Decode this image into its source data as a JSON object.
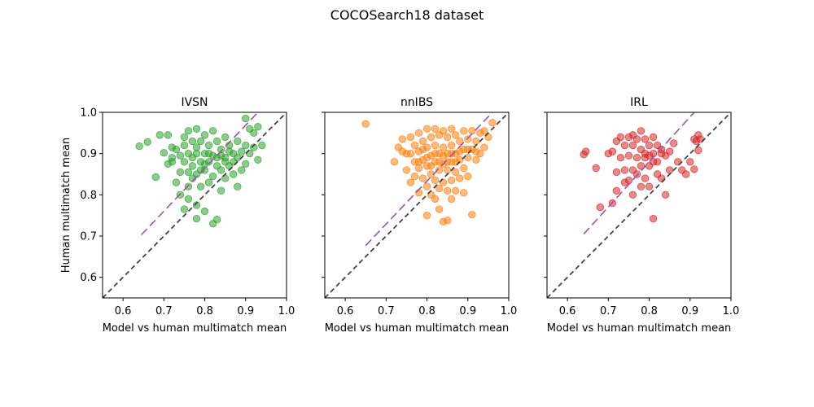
{
  "figure": {
    "suptitle": "COCOSearch18 dataset"
  },
  "chart_data": [
    {
      "type": "scatter",
      "title": "IVSN",
      "xlabel": "Model vs human multimatch mean",
      "ylabel": "Human multimatch mean",
      "xlim": [
        0.55,
        1.0
      ],
      "ylim": [
        0.55,
        1.0
      ],
      "xticks": [
        "0.6",
        "0.7",
        "0.8",
        "0.9",
        "1.0"
      ],
      "yticks": [
        "0.6",
        "0.7",
        "0.8",
        "0.9",
        "1.0"
      ],
      "color": "#2ca02c",
      "identity_line": {
        "color": "#444444",
        "points": [
          [
            0.55,
            0.55
          ],
          [
            1.0,
            1.0
          ]
        ]
      },
      "fit_line": {
        "color": "#a050b0",
        "points": [
          [
            0.645,
            0.703
          ],
          [
            0.93,
            1.0
          ]
        ]
      },
      "points": [
        [
          0.64,
          0.918
        ],
        [
          0.66,
          0.928
        ],
        [
          0.68,
          0.843
        ],
        [
          0.69,
          0.945
        ],
        [
          0.7,
          0.902
        ],
        [
          0.71,
          0.945
        ],
        [
          0.71,
          0.875
        ],
        [
          0.72,
          0.915
        ],
        [
          0.72,
          0.88
        ],
        [
          0.73,
          0.83
        ],
        [
          0.73,
          0.91
        ],
        [
          0.74,
          0.895
        ],
        [
          0.74,
          0.855
        ],
        [
          0.74,
          0.8
        ],
        [
          0.75,
          0.92
        ],
        [
          0.75,
          0.88
        ],
        [
          0.75,
          0.765
        ],
        [
          0.76,
          0.955
        ],
        [
          0.76,
          0.9
        ],
        [
          0.76,
          0.855
        ],
        [
          0.76,
          0.82
        ],
        [
          0.76,
          0.79
        ],
        [
          0.77,
          0.93
        ],
        [
          0.77,
          0.87
        ],
        [
          0.77,
          0.84
        ],
        [
          0.78,
          0.96
        ],
        [
          0.78,
          0.9
        ],
        [
          0.78,
          0.85
        ],
        [
          0.78,
          0.775
        ],
        [
          0.78,
          0.742
        ],
        [
          0.79,
          0.93
        ],
        [
          0.79,
          0.88
        ],
        [
          0.79,
          0.82
        ],
        [
          0.8,
          0.945
        ],
        [
          0.8,
          0.9
        ],
        [
          0.8,
          0.86
        ],
        [
          0.8,
          0.76
        ],
        [
          0.81,
          0.92
        ],
        [
          0.81,
          0.88
        ],
        [
          0.81,
          0.83
        ],
        [
          0.82,
          0.955
        ],
        [
          0.82,
          0.895
        ],
        [
          0.82,
          0.845
        ],
        [
          0.82,
          0.73
        ],
        [
          0.83,
          0.93
        ],
        [
          0.83,
          0.87
        ],
        [
          0.83,
          0.74
        ],
        [
          0.84,
          0.91
        ],
        [
          0.84,
          0.86
        ],
        [
          0.84,
          0.81
        ],
        [
          0.85,
          0.94
        ],
        [
          0.85,
          0.89
        ],
        [
          0.85,
          0.84
        ],
        [
          0.86,
          0.92
        ],
        [
          0.86,
          0.87
        ],
        [
          0.87,
          0.9
        ],
        [
          0.87,
          0.85
        ],
        [
          0.88,
          0.93
        ],
        [
          0.88,
          0.89
        ],
        [
          0.88,
          0.82
        ],
        [
          0.89,
          0.905
        ],
        [
          0.89,
          0.86
        ],
        [
          0.9,
          0.985
        ],
        [
          0.9,
          0.92
        ],
        [
          0.9,
          0.875
        ],
        [
          0.91,
          0.96
        ],
        [
          0.91,
          0.9
        ],
        [
          0.92,
          0.95
        ],
        [
          0.92,
          0.915
        ],
        [
          0.93,
          0.885
        ],
        [
          0.93,
          0.965
        ],
        [
          0.94,
          0.92
        ],
        [
          0.75,
          0.94
        ],
        [
          0.77,
          0.89
        ],
        [
          0.79,
          0.86
        ],
        [
          0.81,
          0.9
        ],
        [
          0.83,
          0.89
        ],
        [
          0.85,
          0.88
        ],
        [
          0.87,
          0.88
        ],
        [
          0.72,
          0.89
        ],
        [
          0.8,
          0.875
        ],
        [
          0.78,
          0.915
        ],
        [
          0.84,
          0.895
        ],
        [
          0.86,
          0.905
        ]
      ]
    },
    {
      "type": "scatter",
      "title": "nnIBS",
      "xlabel": "Model vs human multimatch mean",
      "ylabel": "",
      "xlim": [
        0.55,
        1.0
      ],
      "ylim": [
        0.55,
        1.0
      ],
      "xticks": [
        "0.6",
        "0.7",
        "0.8",
        "0.9",
        "1.0"
      ],
      "yticks": [
        "0.6",
        "0.7",
        "0.8",
        "0.9",
        "1.0"
      ],
      "color": "#ff7f0e",
      "identity_line": {
        "color": "#444444",
        "points": [
          [
            0.55,
            0.55
          ],
          [
            1.0,
            1.0
          ]
        ]
      },
      "fit_line": {
        "color": "#a050b0",
        "points": [
          [
            0.65,
            0.677
          ],
          [
            0.96,
            1.0
          ]
        ]
      },
      "points": [
        [
          0.65,
          0.972
        ],
        [
          0.72,
          0.88
        ],
        [
          0.73,
          0.915
        ],
        [
          0.74,
          0.935
        ],
        [
          0.75,
          0.9
        ],
        [
          0.75,
          0.86
        ],
        [
          0.76,
          0.94
        ],
        [
          0.76,
          0.83
        ],
        [
          0.77,
          0.92
        ],
        [
          0.77,
          0.88
        ],
        [
          0.77,
          0.845
        ],
        [
          0.78,
          0.95
        ],
        [
          0.78,
          0.905
        ],
        [
          0.78,
          0.865
        ],
        [
          0.78,
          0.805
        ],
        [
          0.79,
          0.93
        ],
        [
          0.79,
          0.885
        ],
        [
          0.79,
          0.84
        ],
        [
          0.8,
          0.96
        ],
        [
          0.8,
          0.915
        ],
        [
          0.8,
          0.87
        ],
        [
          0.8,
          0.82
        ],
        [
          0.8,
          0.75
        ],
        [
          0.81,
          0.94
        ],
        [
          0.81,
          0.895
        ],
        [
          0.81,
          0.85
        ],
        [
          0.81,
          0.8
        ],
        [
          0.82,
          0.96
        ],
        [
          0.82,
          0.92
        ],
        [
          0.82,
          0.88
        ],
        [
          0.82,
          0.835
        ],
        [
          0.82,
          0.79
        ],
        [
          0.83,
          0.945
        ],
        [
          0.83,
          0.9
        ],
        [
          0.83,
          0.86
        ],
        [
          0.83,
          0.815
        ],
        [
          0.83,
          0.765
        ],
        [
          0.84,
          0.955
        ],
        [
          0.84,
          0.915
        ],
        [
          0.84,
          0.875
        ],
        [
          0.84,
          0.83
        ],
        [
          0.84,
          0.735
        ],
        [
          0.85,
          0.94
        ],
        [
          0.85,
          0.9
        ],
        [
          0.85,
          0.86
        ],
        [
          0.85,
          0.81
        ],
        [
          0.85,
          0.738
        ],
        [
          0.86,
          0.96
        ],
        [
          0.86,
          0.92
        ],
        [
          0.86,
          0.88
        ],
        [
          0.86,
          0.835
        ],
        [
          0.86,
          0.79
        ],
        [
          0.87,
          0.945
        ],
        [
          0.87,
          0.9
        ],
        [
          0.87,
          0.855
        ],
        [
          0.87,
          0.81
        ],
        [
          0.88,
          0.93
        ],
        [
          0.88,
          0.885
        ],
        [
          0.88,
          0.84
        ],
        [
          0.89,
          0.955
        ],
        [
          0.89,
          0.91
        ],
        [
          0.89,
          0.865
        ],
        [
          0.89,
          0.805
        ],
        [
          0.9,
          0.935
        ],
        [
          0.9,
          0.89
        ],
        [
          0.9,
          0.845
        ],
        [
          0.91,
          0.955
        ],
        [
          0.91,
          0.91
        ],
        [
          0.91,
          0.752
        ],
        [
          0.92,
          0.93
        ],
        [
          0.92,
          0.885
        ],
        [
          0.93,
          0.95
        ],
        [
          0.93,
          0.9
        ],
        [
          0.94,
          0.955
        ],
        [
          0.94,
          0.915
        ],
        [
          0.95,
          0.94
        ],
        [
          0.96,
          0.975
        ],
        [
          0.76,
          0.9
        ],
        [
          0.79,
          0.91
        ],
        [
          0.81,
          0.87
        ],
        [
          0.83,
          0.88
        ],
        [
          0.85,
          0.88
        ],
        [
          0.87,
          0.88
        ],
        [
          0.88,
          0.905
        ],
        [
          0.82,
          0.9
        ],
        [
          0.84,
          0.895
        ],
        [
          0.86,
          0.9
        ],
        [
          0.8,
          0.89
        ],
        [
          0.78,
          0.88
        ],
        [
          0.9,
          0.91
        ],
        [
          0.92,
          0.905
        ],
        [
          0.74,
          0.905
        ]
      ]
    },
    {
      "type": "scatter",
      "title": "IRL",
      "xlabel": "Model vs human multimatch mean",
      "ylabel": "",
      "xlim": [
        0.55,
        1.0
      ],
      "ylim": [
        0.55,
        1.0
      ],
      "xticks": [
        "0.6",
        "0.7",
        "0.8",
        "0.9",
        "1.0"
      ],
      "yticks": [
        "0.6",
        "0.7",
        "0.8",
        "0.9",
        "1.0"
      ],
      "color": "#d62728",
      "identity_line": {
        "color": "#444444",
        "points": [
          [
            0.55,
            0.55
          ],
          [
            1.0,
            1.0
          ]
        ]
      },
      "fit_line": {
        "color": "#a050b0",
        "points": [
          [
            0.64,
            0.705
          ],
          [
            0.91,
            1.0
          ]
        ]
      },
      "points": [
        [
          0.64,
          0.898
        ],
        [
          0.645,
          0.905
        ],
        [
          0.67,
          0.865
        ],
        [
          0.68,
          0.77
        ],
        [
          0.7,
          0.9
        ],
        [
          0.71,
          0.905
        ],
        [
          0.71,
          0.78
        ],
        [
          0.72,
          0.93
        ],
        [
          0.72,
          0.855
        ],
        [
          0.72,
          0.81
        ],
        [
          0.73,
          0.94
        ],
        [
          0.73,
          0.89
        ],
        [
          0.74,
          0.92
        ],
        [
          0.74,
          0.86
        ],
        [
          0.75,
          0.94
        ],
        [
          0.75,
          0.895
        ],
        [
          0.75,
          0.835
        ],
        [
          0.76,
          0.92
        ],
        [
          0.76,
          0.86
        ],
        [
          0.76,
          0.8
        ],
        [
          0.77,
          0.935
        ],
        [
          0.77,
          0.89
        ],
        [
          0.77,
          0.85
        ],
        [
          0.78,
          0.955
        ],
        [
          0.78,
          0.91
        ],
        [
          0.78,
          0.87
        ],
        [
          0.78,
          0.82
        ],
        [
          0.79,
          0.935
        ],
        [
          0.79,
          0.89
        ],
        [
          0.79,
          0.84
        ],
        [
          0.8,
          0.92
        ],
        [
          0.8,
          0.87
        ],
        [
          0.8,
          0.82
        ],
        [
          0.81,
          0.94
        ],
        [
          0.81,
          0.9
        ],
        [
          0.81,
          0.742
        ],
        [
          0.82,
          0.92
        ],
        [
          0.82,
          0.88
        ],
        [
          0.82,
          0.85
        ],
        [
          0.83,
          0.9
        ],
        [
          0.83,
          0.84
        ],
        [
          0.84,
          0.895
        ],
        [
          0.84,
          0.8
        ],
        [
          0.85,
          0.905
        ],
        [
          0.85,
          0.86
        ],
        [
          0.86,
          0.925
        ],
        [
          0.87,
          0.88
        ],
        [
          0.88,
          0.86
        ],
        [
          0.89,
          0.85
        ],
        [
          0.9,
          0.88
        ],
        [
          0.91,
          0.935
        ],
        [
          0.91,
          0.862
        ],
        [
          0.915,
          0.93
        ],
        [
          0.92,
          0.945
        ],
        [
          0.92,
          0.908
        ],
        [
          0.925,
          0.935
        ],
        [
          0.76,
          0.945
        ],
        [
          0.79,
          0.9
        ],
        [
          0.81,
          0.88
        ],
        [
          0.83,
          0.91
        ],
        [
          0.74,
          0.83
        ],
        [
          0.8,
          0.895
        ]
      ]
    }
  ]
}
